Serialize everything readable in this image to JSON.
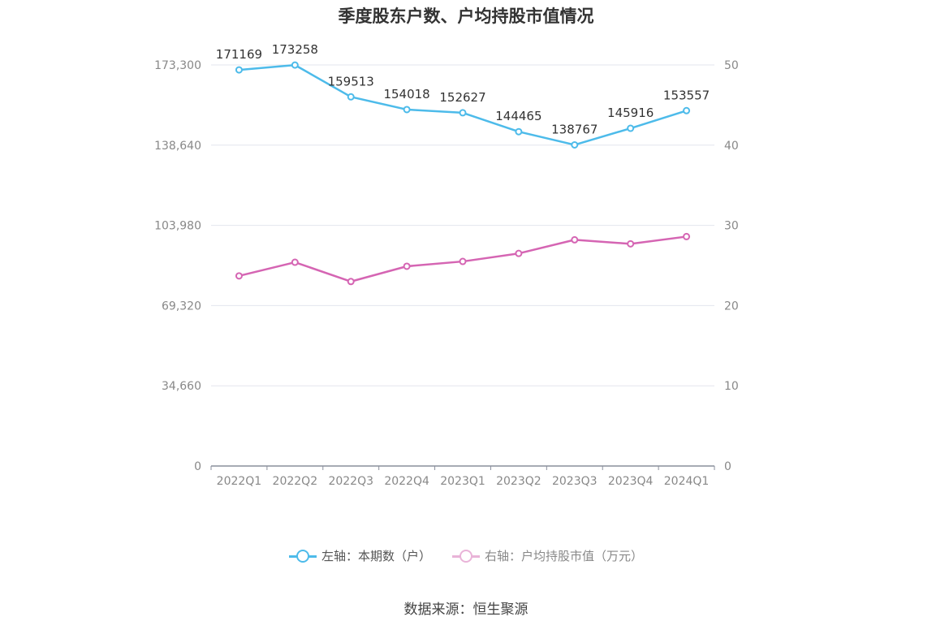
{
  "chart_data": {
    "type": "line",
    "title": "季度股东户数、户均持股市值情况",
    "categories": [
      "2022Q1",
      "2022Q2",
      "2022Q3",
      "2022Q4",
      "2023Q1",
      "2023Q2",
      "2023Q3",
      "2023Q4",
      "2024Q1"
    ],
    "y_left": {
      "ticks": [
        "0",
        "34,660",
        "69,320",
        "103,980",
        "138,640",
        "173,300"
      ],
      "ylim": [
        0,
        173300
      ]
    },
    "y_right": {
      "ticks": [
        "0",
        "10",
        "20",
        "30",
        "40",
        "50"
      ],
      "ylim": [
        0,
        50
      ]
    },
    "series": [
      {
        "name": "左轴：本期数（户）",
        "axis": "left",
        "color": "#4dbbea",
        "values": [
          171169,
          173258,
          159513,
          154018,
          152627,
          144465,
          138767,
          145916,
          153557
        ],
        "labels": [
          "171169",
          "173258",
          "159513",
          "154018",
          "152627",
          "144465",
          "138767",
          "145916",
          "153557"
        ]
      },
      {
        "name": "右轴：户均持股市值（万元）",
        "axis": "right",
        "color": "#d565b3",
        "values": [
          23.7,
          25.4,
          23.0,
          24.9,
          25.5,
          26.5,
          28.2,
          27.7,
          28.6
        ]
      }
    ],
    "grid": true,
    "legend_position": "bottom"
  },
  "source": "数据来源：恒生聚源"
}
